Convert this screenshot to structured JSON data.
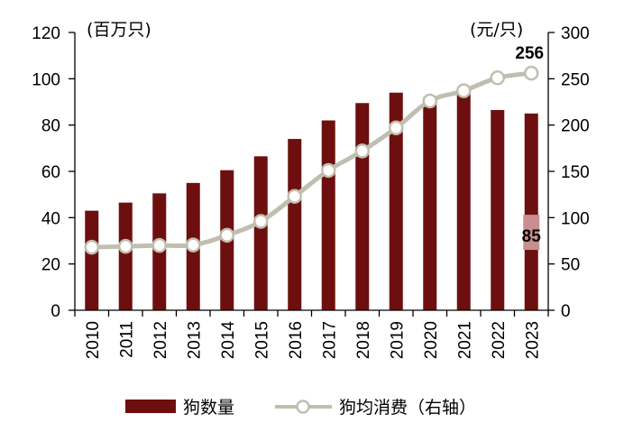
{
  "chart_data": {
    "type": "bar+line",
    "categories": [
      "2010",
      "2011",
      "2012",
      "2013",
      "2014",
      "2015",
      "2016",
      "2017",
      "2018",
      "2019",
      "2020",
      "2021",
      "2022",
      "2023"
    ],
    "series": [
      {
        "name": "狗数量",
        "type": "bar",
        "axis": "left",
        "color": "#6e0f0f",
        "values": [
          43,
          46.5,
          50.5,
          55,
          60.5,
          66.5,
          74,
          82,
          89.5,
          94,
          92,
          93.5,
          86.5,
          85
        ]
      },
      {
        "name": "狗均消费（右轴）",
        "type": "line",
        "axis": "right",
        "color": "#c0bfaf",
        "values": [
          68,
          69,
          70,
          70.5,
          81,
          96,
          123,
          151,
          172,
          197,
          226,
          237,
          251,
          256
        ]
      }
    ],
    "left_axis": {
      "unit_label": "(百万只)",
      "min": 0,
      "max": 120,
      "ticks": [
        "0",
        "20",
        "40",
        "60",
        "80",
        "100",
        "120"
      ]
    },
    "right_axis": {
      "unit_label": "(元/只)",
      "min": 0,
      "max": 300,
      "ticks": [
        "0",
        "50",
        "100",
        "150",
        "200",
        "250",
        "300"
      ]
    },
    "data_labels": {
      "last_bar": "85",
      "last_point": "256"
    },
    "legend": {
      "position": "bottom",
      "entries": [
        "狗数量",
        "狗均消费（右轴）"
      ]
    }
  }
}
